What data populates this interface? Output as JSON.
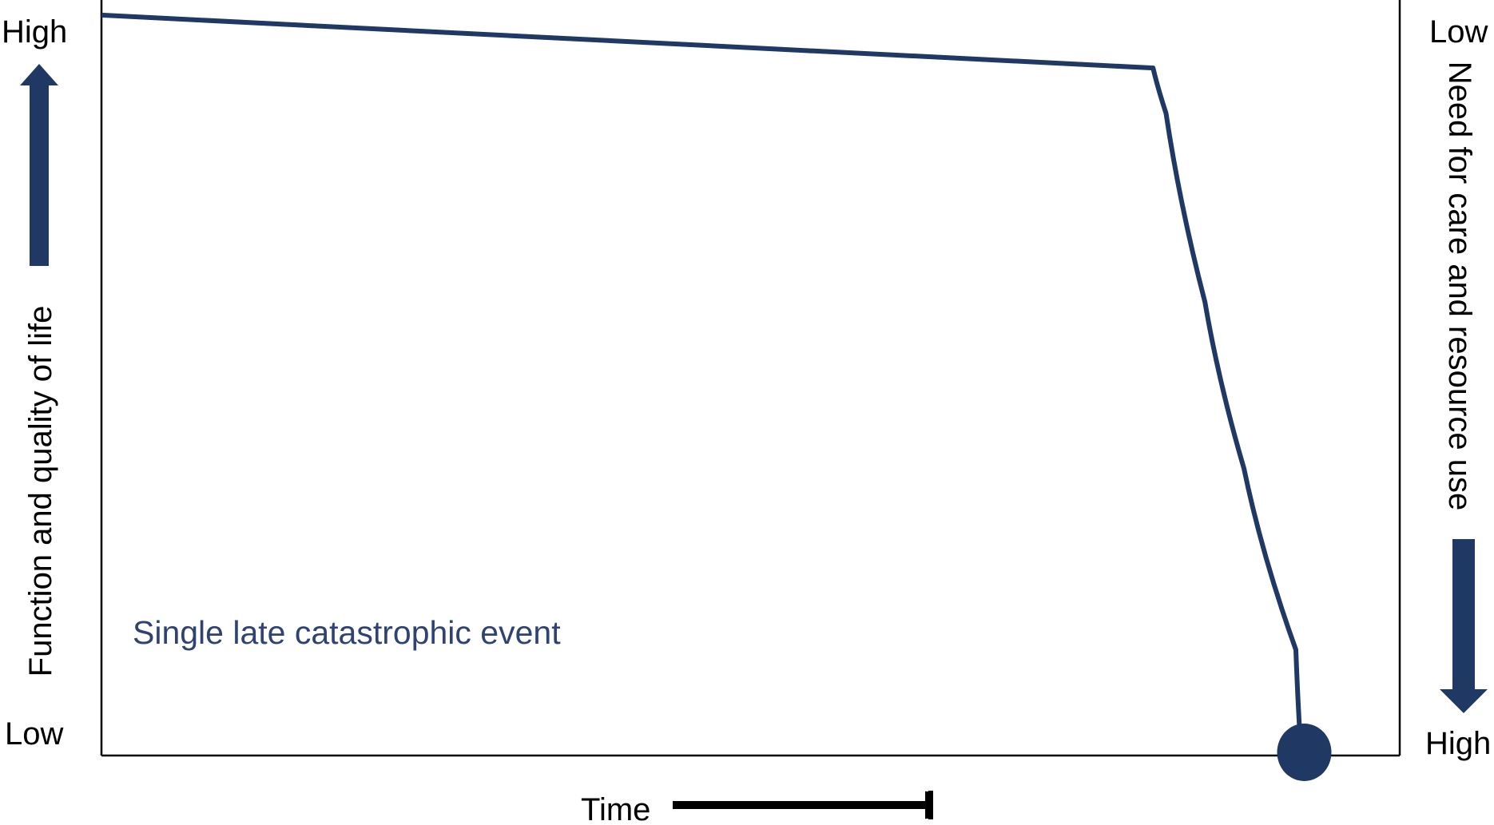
{
  "left_axis": {
    "title": "Function and quality of life",
    "top_label": "High",
    "bottom_label": "Low"
  },
  "right_axis": {
    "title": "Need for care and resource use",
    "top_label": "Low",
    "bottom_label": "High"
  },
  "x_axis": {
    "title": "Time"
  },
  "annotation": {
    "text": "Single late catastrophic event"
  },
  "colors": {
    "curve": "#1f3864",
    "arrow": "#203864",
    "annotation": "#2e4374",
    "axis": "#000000"
  },
  "chart_data": {
    "type": "line",
    "title": "",
    "xlabel": "Time",
    "ylabel": "Function and quality of life",
    "y2label": "Need for care and resource use",
    "series": [
      {
        "name": "Single late catastrophic event",
        "x": [
          0,
          81,
          82,
          85,
          88,
          92,
          92.4
        ],
        "y": [
          98,
          91,
          85,
          60,
          38,
          14,
          0
        ]
      }
    ],
    "ylim": [
      0,
      100
    ],
    "xlim": [
      0,
      100
    ],
    "grid": false,
    "legend": "none",
    "end_marker": "filled circle at end of curve"
  }
}
